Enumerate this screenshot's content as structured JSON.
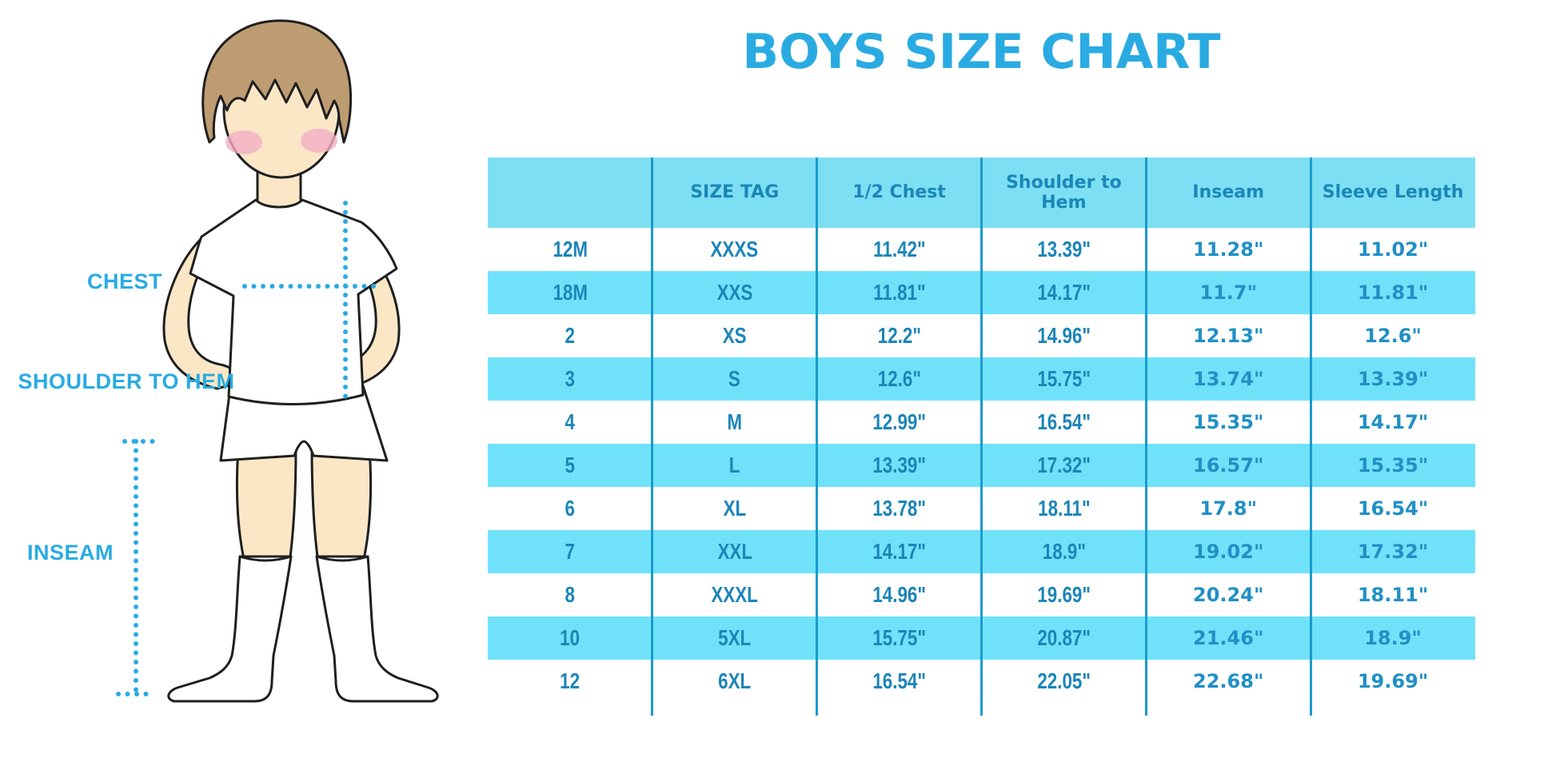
{
  "title": "BOYS SIZE CHART",
  "colors": {
    "accent_blue": "#29ABE2",
    "header_bg": "#7DDFF3",
    "stripe_bg": "#6FE2FA",
    "divider": "#1A9BCB",
    "cell_text": "#1C85B8",
    "rounded_cell_text": "#2090C5",
    "hair": "#BE9C72",
    "skin": "#FBE7C6",
    "blush": "#F3AFC4"
  },
  "figure": {
    "labels": {
      "chest": "CHEST",
      "shoulder_to_hem": "SHOULDER TO HEM",
      "inseam": "INSEAM"
    }
  },
  "table": {
    "headers": [
      "",
      "SIZE TAG",
      "1/2 Chest",
      "Shoulder to Hem",
      "Inseam",
      "Sleeve Length"
    ],
    "rows": [
      {
        "size": "12M",
        "tag": "XXXS",
        "half_chest": "11.42\"",
        "shoulder_to_hem": "13.39\"",
        "inseam": "11.28\"",
        "sleeve": "11.02\""
      },
      {
        "size": "18M",
        "tag": "XXS",
        "half_chest": "11.81\"",
        "shoulder_to_hem": "14.17\"",
        "inseam": "11.7\"",
        "sleeve": "11.81\""
      },
      {
        "size": "2",
        "tag": "XS",
        "half_chest": "12.2\"",
        "shoulder_to_hem": "14.96\"",
        "inseam": "12.13\"",
        "sleeve": "12.6\""
      },
      {
        "size": "3",
        "tag": "S",
        "half_chest": "12.6\"",
        "shoulder_to_hem": "15.75\"",
        "inseam": "13.74\"",
        "sleeve": "13.39\""
      },
      {
        "size": "4",
        "tag": "M",
        "half_chest": "12.99\"",
        "shoulder_to_hem": "16.54\"",
        "inseam": "15.35\"",
        "sleeve": "14.17\""
      },
      {
        "size": "5",
        "tag": "L",
        "half_chest": "13.39\"",
        "shoulder_to_hem": "17.32\"",
        "inseam": "16.57\"",
        "sleeve": "15.35\""
      },
      {
        "size": "6",
        "tag": "XL",
        "half_chest": "13.78\"",
        "shoulder_to_hem": "18.11\"",
        "inseam": "17.8\"",
        "sleeve": "16.54\""
      },
      {
        "size": "7",
        "tag": "XXL",
        "half_chest": "14.17\"",
        "shoulder_to_hem": "18.9\"",
        "inseam": "19.02\"",
        "sleeve": "17.32\""
      },
      {
        "size": "8",
        "tag": "XXXL",
        "half_chest": "14.96\"",
        "shoulder_to_hem": "19.69\"",
        "inseam": "20.24\"",
        "sleeve": "18.11\""
      },
      {
        "size": "10",
        "tag": "5XL",
        "half_chest": "15.75\"",
        "shoulder_to_hem": "20.87\"",
        "inseam": "21.46\"",
        "sleeve": "18.9\""
      },
      {
        "size": "12",
        "tag": "6XL",
        "half_chest": "16.54\"",
        "shoulder_to_hem": "22.05\"",
        "inseam": "22.68\"",
        "sleeve": "19.69\""
      }
    ]
  }
}
